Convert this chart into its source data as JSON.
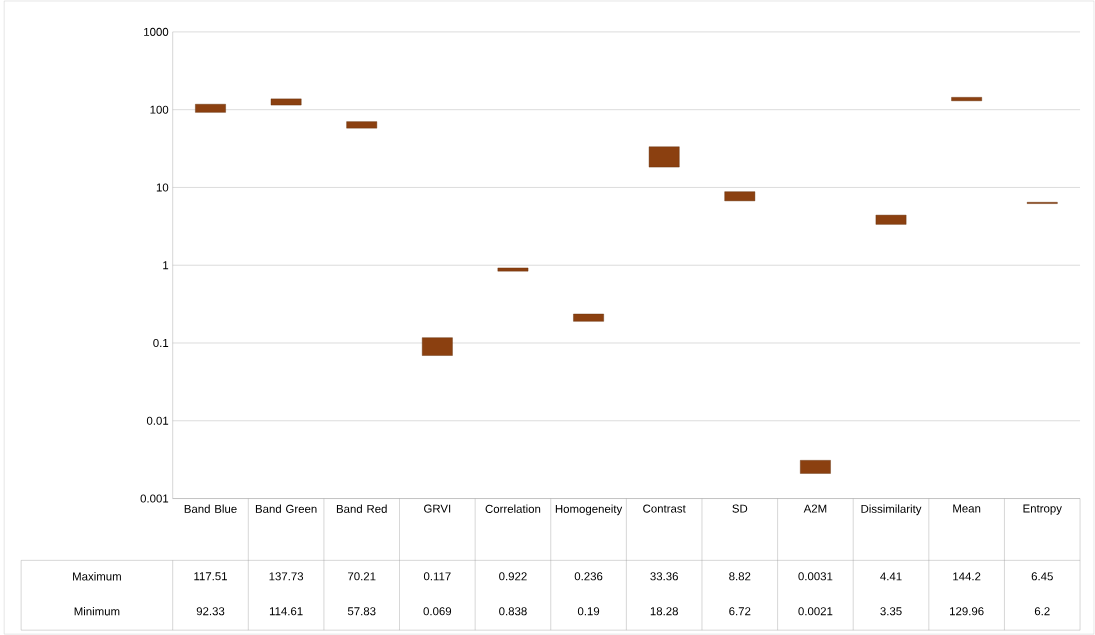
{
  "chart_data": {
    "type": "bar",
    "categories": [
      "Band Blue",
      "Band Green",
      "Band Red",
      "GRVI",
      "Correlation",
      "Homogeneity",
      "Contrast",
      "SD",
      "A2M",
      "Dissimilarity",
      "Mean",
      "Entropy"
    ],
    "base": [
      92.33,
      114.61,
      57.83,
      0.069,
      0.838,
      0.19,
      18.28,
      6.72,
      0.0021,
      3.35,
      129.96,
      6.2
    ],
    "values": [
      25.18,
      23.12,
      12.38,
      0.048,
      0.084,
      0.046,
      15.08,
      2.1,
      0.001,
      1.06,
      14.24,
      0.25
    ],
    "value_labels": [
      "117.51",
      "137.73",
      "70.21",
      "0.117",
      "0.922",
      "0.236",
      "33.36",
      "8.82",
      "0.0031",
      "4.41",
      "144.2",
      "6.45"
    ],
    "color": "#8b4010",
    "log": "y",
    "grid": "y",
    "ylim": [
      0.001,
      1000
    ],
    "yticks": [
      0.001,
      0.01,
      0.1,
      1,
      10,
      100,
      1000
    ],
    "annotations": [
      "Maximum",
      "Minimum",
      "92.33",
      "114.61",
      "57.83",
      "0.069",
      "0.838",
      "0.19",
      "18.28",
      "6.72",
      "0.0021",
      "3.35",
      "129.96",
      "6.2"
    ]
  }
}
